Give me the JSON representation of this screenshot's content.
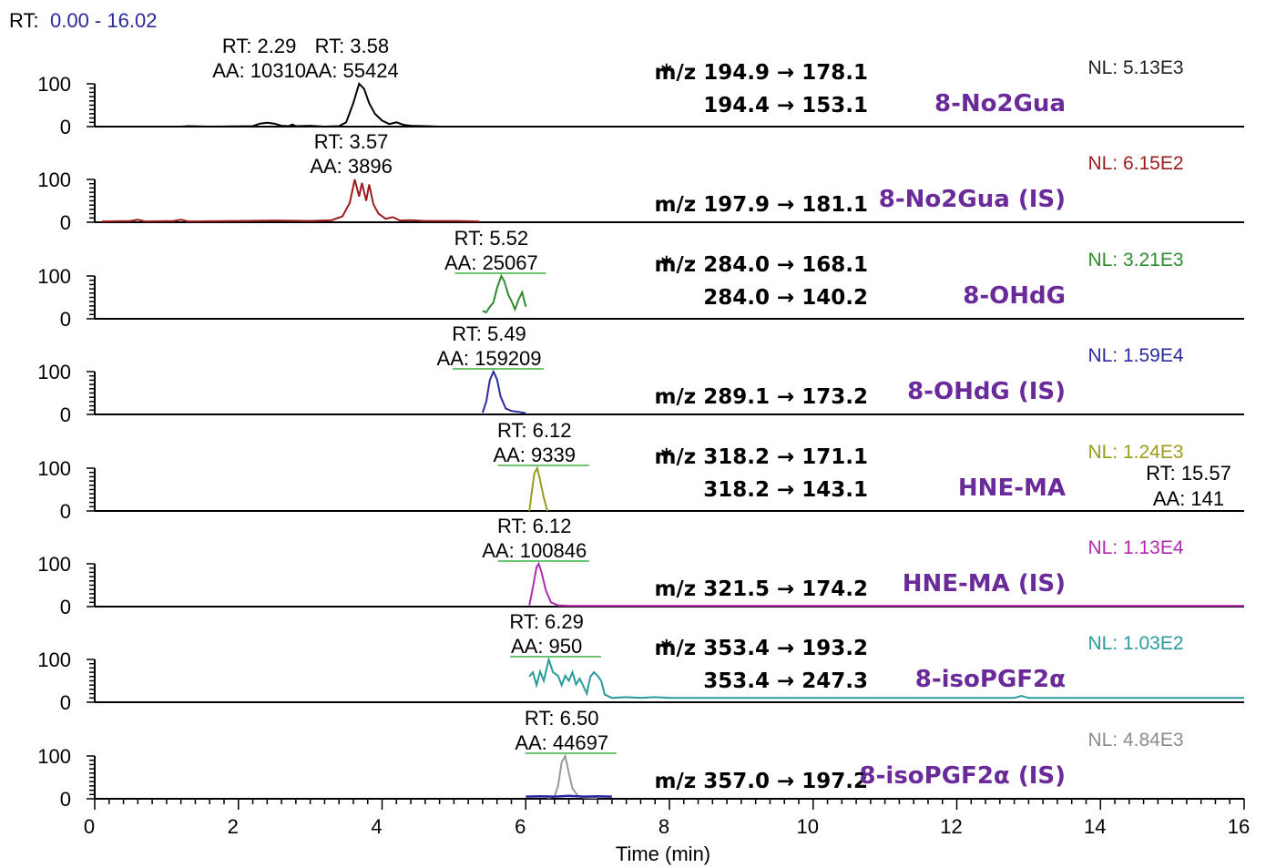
{
  "header": {
    "rt_label": "RT:",
    "rt_range": "0.00 - 16.02"
  },
  "chart_data": {
    "type": "line",
    "xlabel": "Time (min)",
    "xlim": [
      0,
      16
    ],
    "x_ticks": [
      "0",
      "2",
      "4",
      "6",
      "8",
      "10",
      "12",
      "14",
      "16"
    ],
    "y_ticks": [
      "100",
      "0"
    ],
    "panels": [
      {
        "name": "8-No2Gua",
        "color": "#000000",
        "nl": "NL: 5.13E3",
        "nl_color": "#202020",
        "transitions": [
          {
            "star": "*",
            "text": "m/z 194.9 → 178.1"
          },
          {
            "star": "",
            "text": "194.4 → 153.1"
          }
        ],
        "annotations": [
          {
            "rt": "RT: 2.29",
            "aa": "AA: 10310",
            "x": 2.29
          },
          {
            "rt": "RT: 3.58",
            "aa": "AA: 55424",
            "x": 3.58
          }
        ],
        "series": [
          [
            0.1,
            0
          ],
          [
            1.2,
            0
          ],
          [
            1.3,
            1
          ],
          [
            1.6,
            0
          ],
          [
            2.2,
            1
          ],
          [
            2.3,
            7
          ],
          [
            2.4,
            9
          ],
          [
            2.5,
            7
          ],
          [
            2.6,
            2
          ],
          [
            2.7,
            1
          ],
          [
            2.75,
            5
          ],
          [
            2.8,
            1
          ],
          [
            3.0,
            2
          ],
          [
            3.2,
            0
          ],
          [
            3.4,
            1
          ],
          [
            3.5,
            10
          ],
          [
            3.6,
            55
          ],
          [
            3.68,
            100
          ],
          [
            3.75,
            88
          ],
          [
            3.82,
            55
          ],
          [
            3.9,
            30
          ],
          [
            4.0,
            14
          ],
          [
            4.1,
            6
          ],
          [
            4.2,
            10
          ],
          [
            4.3,
            4
          ],
          [
            4.4,
            2
          ],
          [
            4.6,
            1
          ],
          [
            4.8,
            0
          ],
          [
            5.4,
            0
          ]
        ]
      },
      {
        "name": "8-No2Gua (IS)",
        "color": "#9a1c1c",
        "nl": "NL: 6.15E2",
        "nl_color": "#9a1c1c",
        "transitions": [
          {
            "star": "",
            "text": "m/z 197.9 → 181.1"
          }
        ],
        "annotations": [
          {
            "rt": "RT: 3.57",
            "aa": "AA: 3896",
            "x": 3.57
          }
        ],
        "series": [
          [
            0.1,
            2
          ],
          [
            0.5,
            3
          ],
          [
            0.6,
            6
          ],
          [
            0.7,
            2
          ],
          [
            1.1,
            3
          ],
          [
            1.2,
            6
          ],
          [
            1.3,
            2
          ],
          [
            2.0,
            3
          ],
          [
            2.5,
            4
          ],
          [
            3.0,
            3
          ],
          [
            3.3,
            5
          ],
          [
            3.45,
            14
          ],
          [
            3.55,
            45
          ],
          [
            3.62,
            100
          ],
          [
            3.68,
            60
          ],
          [
            3.72,
            92
          ],
          [
            3.78,
            50
          ],
          [
            3.82,
            88
          ],
          [
            3.88,
            42
          ],
          [
            3.95,
            20
          ],
          [
            4.05,
            8
          ],
          [
            4.15,
            12
          ],
          [
            4.25,
            4
          ],
          [
            4.4,
            5
          ],
          [
            4.6,
            3
          ],
          [
            5.0,
            3
          ],
          [
            5.35,
            2
          ]
        ]
      },
      {
        "name": "8-OHdG",
        "color": "#2e8b2e",
        "nl": "NL: 3.21E3",
        "nl_color": "#2e8b2e",
        "transitions": [
          {
            "star": "*",
            "text": "m/z 284.0 → 168.1"
          },
          {
            "star": "",
            "text": "284.0 → 140.2"
          }
        ],
        "annotations": [
          {
            "rt": "RT: 5.52",
            "aa": "AA: 25067",
            "x": 5.52
          }
        ],
        "series": [
          [
            5.4,
            18
          ],
          [
            5.45,
            15
          ],
          [
            5.5,
            28
          ],
          [
            5.55,
            38
          ],
          [
            5.6,
            72
          ],
          [
            5.66,
            100
          ],
          [
            5.7,
            88
          ],
          [
            5.76,
            55
          ],
          [
            5.8,
            42
          ],
          [
            5.85,
            22
          ],
          [
            5.9,
            45
          ],
          [
            5.95,
            62
          ],
          [
            6.0,
            28
          ]
        ]
      },
      {
        "name": "8-OHdG (IS)",
        "color": "#2a2aa0",
        "nl": "NL: 1.59E4",
        "nl_color": "#2a2aa0",
        "transitions": [
          {
            "star": "",
            "text": "m/z 289.1 → 173.2"
          }
        ],
        "annotations": [
          {
            "rt": "RT: 5.49",
            "aa": "AA: 159209",
            "x": 5.49
          }
        ],
        "series": [
          [
            5.4,
            4
          ],
          [
            5.45,
            30
          ],
          [
            5.5,
            80
          ],
          [
            5.55,
            100
          ],
          [
            5.6,
            82
          ],
          [
            5.65,
            42
          ],
          [
            5.72,
            14
          ],
          [
            5.8,
            8
          ],
          [
            5.9,
            6
          ],
          [
            6.0,
            3
          ]
        ]
      },
      {
        "name": "HNE-MA",
        "color": "#9b9b1c",
        "nl": "NL: 1.24E3",
        "nl_color": "#9b9b1c",
        "transitions": [
          {
            "star": "*",
            "text": "m/z 318.2 → 171.1"
          },
          {
            "star": "",
            "text": "318.2 → 143.1"
          }
        ],
        "annotations": [
          {
            "rt": "RT: 6.12",
            "aa": "AA: 9339",
            "x": 6.12
          },
          {
            "rt": "RT: 15.57",
            "aa": "AA: 141",
            "x": 15.57
          }
        ],
        "series": [
          [
            6.05,
            0
          ],
          [
            6.08,
            40
          ],
          [
            6.12,
            88
          ],
          [
            6.16,
            100
          ],
          [
            6.2,
            72
          ],
          [
            6.25,
            32
          ],
          [
            6.3,
            0
          ]
        ]
      },
      {
        "name": "HNE-MA (IS)",
        "color": "#b02ab0",
        "nl": "NL: 1.13E4",
        "nl_color": "#b02ab0",
        "transitions": [
          {
            "star": "",
            "text": "m/z 321.5 → 174.2"
          }
        ],
        "annotations": [
          {
            "rt": "RT: 6.12",
            "aa": "AA: 100846",
            "x": 6.12
          }
        ],
        "series": [
          [
            6.05,
            3
          ],
          [
            6.1,
            45
          ],
          [
            6.15,
            92
          ],
          [
            6.18,
            100
          ],
          [
            6.22,
            80
          ],
          [
            6.28,
            38
          ],
          [
            6.35,
            10
          ],
          [
            6.45,
            3
          ],
          [
            6.6,
            2
          ],
          [
            7.0,
            2
          ],
          [
            16,
            2
          ]
        ]
      },
      {
        "name": "8-isoPGF2α",
        "color": "#2a9a9a",
        "nl": "NL: 1.03E2",
        "nl_color": "#2a9a9a",
        "transitions": [
          {
            "star": "*",
            "text": "m/z 353.4 → 193.2"
          },
          {
            "star": "",
            "text": "353.4 → 247.3"
          }
        ],
        "annotations": [
          {
            "rt": "RT: 6.29",
            "aa": "AA: 950",
            "x": 6.29
          }
        ],
        "series": [
          [
            6.05,
            60
          ],
          [
            6.1,
            70
          ],
          [
            6.15,
            40
          ],
          [
            6.2,
            72
          ],
          [
            6.25,
            50
          ],
          [
            6.32,
            100
          ],
          [
            6.38,
            70
          ],
          [
            6.45,
            62
          ],
          [
            6.5,
            40
          ],
          [
            6.55,
            62
          ],
          [
            6.6,
            50
          ],
          [
            6.65,
            70
          ],
          [
            6.7,
            42
          ],
          [
            6.75,
            55
          ],
          [
            6.8,
            38
          ],
          [
            6.85,
            20
          ],
          [
            6.9,
            60
          ],
          [
            6.95,
            70
          ],
          [
            7.0,
            62
          ],
          [
            7.05,
            50
          ],
          [
            7.1,
            18
          ],
          [
            7.2,
            10
          ],
          [
            7.4,
            12
          ],
          [
            7.6,
            10
          ],
          [
            7.8,
            12
          ],
          [
            8.0,
            10
          ],
          [
            8.5,
            10
          ],
          [
            9.0,
            10
          ],
          [
            10,
            10
          ],
          [
            11,
            10
          ],
          [
            12,
            10
          ],
          [
            12.8,
            10
          ],
          [
            12.9,
            15
          ],
          [
            13.0,
            10
          ],
          [
            14,
            10
          ],
          [
            15,
            10
          ],
          [
            16,
            10
          ]
        ]
      },
      {
        "name": "8-isoPGF2α (IS)",
        "color": "#9a9a9a",
        "nl": "NL: 4.84E3",
        "nl_color": "#8c8c8c",
        "transitions": [
          {
            "star": "",
            "text": "m/z 357.0 → 197.2"
          }
        ],
        "annotations": [
          {
            "rt": "RT: 6.50",
            "aa": "AA: 44697",
            "x": 6.5
          }
        ],
        "series": [
          [
            6.3,
            2
          ],
          [
            6.4,
            5
          ],
          [
            6.45,
            30
          ],
          [
            6.5,
            85
          ],
          [
            6.55,
            100
          ],
          [
            6.6,
            60
          ],
          [
            6.65,
            25
          ],
          [
            6.72,
            8
          ],
          [
            6.8,
            3
          ],
          [
            7.0,
            2
          ]
        ],
        "baseline": {
          "color": "#2a2aa0",
          "series": [
            [
              6.0,
              5
            ],
            [
              6.2,
              6
            ],
            [
              6.4,
              5
            ],
            [
              6.6,
              7
            ],
            [
              6.8,
              5
            ],
            [
              7.0,
              6
            ],
            [
              7.2,
              5
            ]
          ]
        }
      }
    ]
  }
}
